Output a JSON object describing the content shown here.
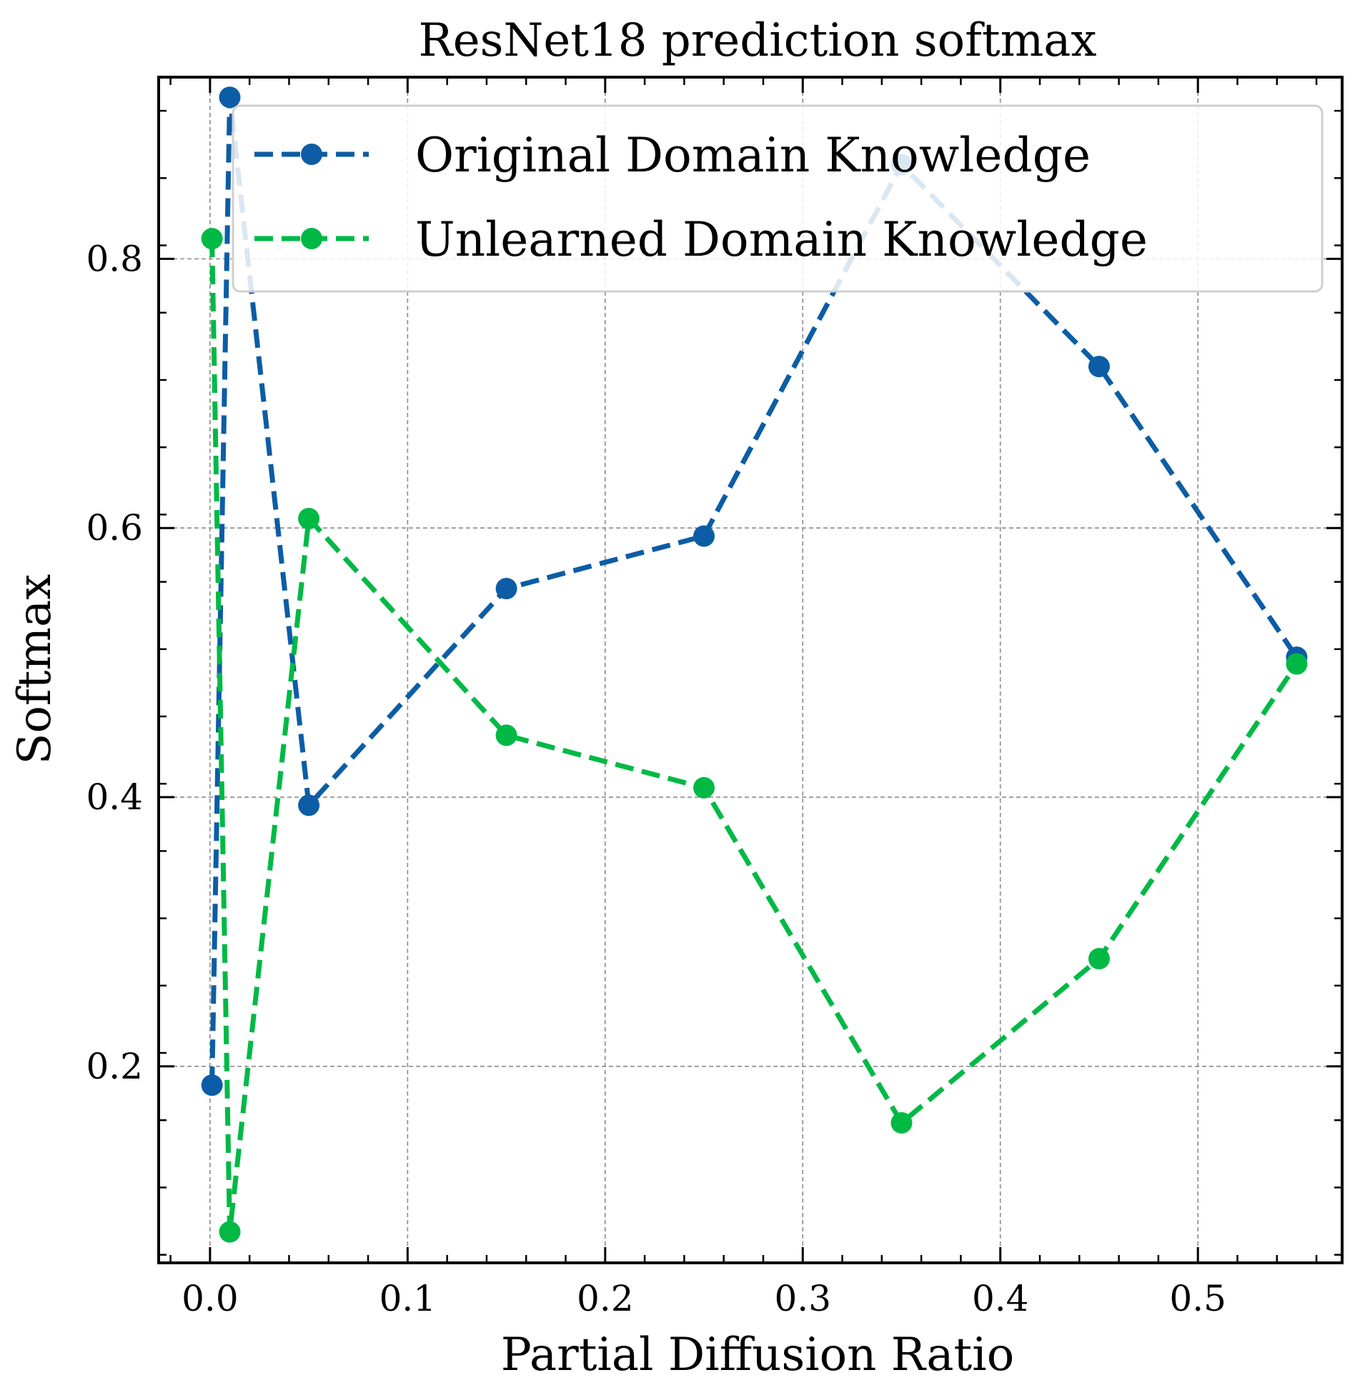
{
  "chart_data": {
    "type": "line",
    "title": "ResNet18 prediction softmax",
    "xlabel": "Partial Diffusion Ratio",
    "ylabel": "Softmax",
    "xlim": [
      -0.026,
      0.573
    ],
    "ylim": [
      0.054,
      0.935
    ],
    "xticks": [
      0.0,
      0.1,
      0.2,
      0.3,
      0.4,
      0.5
    ],
    "xtick_labels": [
      "0.0",
      "0.1",
      "0.2",
      "0.3",
      "0.4",
      "0.5"
    ],
    "yticks": [
      0.2,
      0.4,
      0.6,
      0.8
    ],
    "ytick_labels": [
      "0.2",
      "0.4",
      "0.6",
      "0.8"
    ],
    "grid": true,
    "legend_position": "top-right",
    "series": [
      {
        "name": "Original Domain Knowledge",
        "color": "#0c5da5",
        "line_style": "dashed",
        "marker": "circle",
        "x": [
          0.001,
          0.01,
          0.05,
          0.15,
          0.25,
          0.35,
          0.45,
          0.55
        ],
        "y": [
          0.186,
          0.92,
          0.394,
          0.555,
          0.594,
          0.87,
          0.72,
          0.504
        ]
      },
      {
        "name": "Unlearned Domain Knowledge",
        "color": "#00b945",
        "line_style": "dashed",
        "marker": "circle",
        "x": [
          0.001,
          0.01,
          0.05,
          0.15,
          0.25,
          0.35,
          0.45,
          0.55
        ],
        "y": [
          0.815,
          0.077,
          0.607,
          0.446,
          0.407,
          0.158,
          0.28,
          0.499
        ]
      }
    ]
  }
}
